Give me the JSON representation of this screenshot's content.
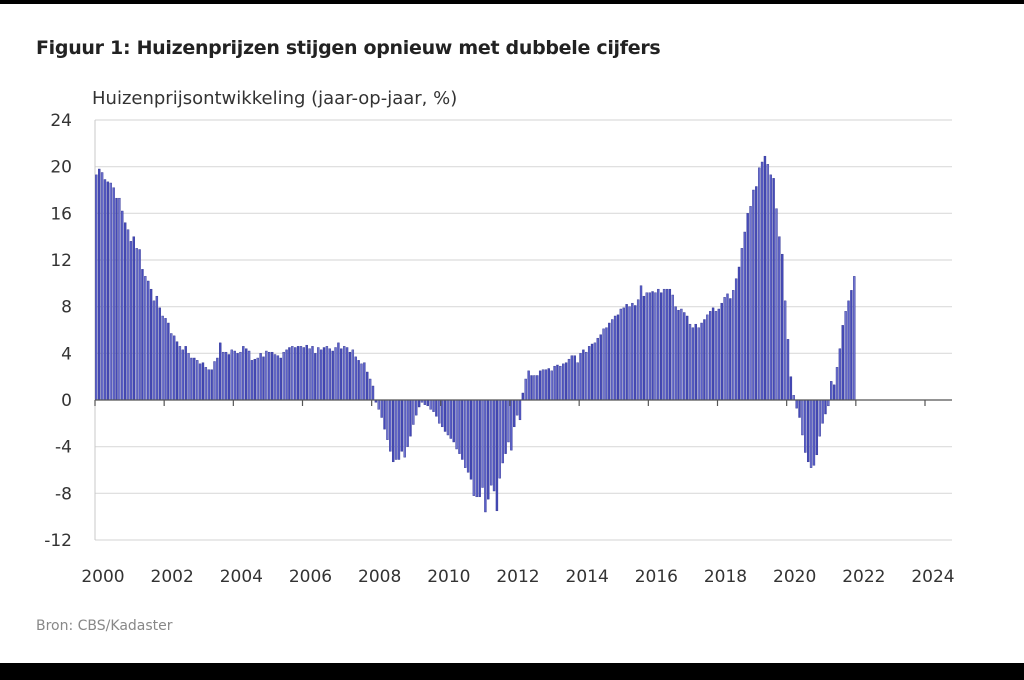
{
  "chart_data": {
    "type": "bar",
    "title": "Figuur 1: Huizenprijzen stijgen opnieuw met dubbele cijfers",
    "ylabel": "Huizenprijsontwikkeling (jaar-op-jaar, %)",
    "xlabel": "",
    "source": "Bron: CBS/Kadaster",
    "ylim": [
      -12,
      24
    ],
    "yticks": [
      "24",
      "20",
      "16",
      "12",
      "8",
      "4",
      "0",
      "-4",
      "-8",
      "-12"
    ],
    "ytick_values": [
      24,
      20,
      16,
      12,
      8,
      4,
      0,
      -4,
      -8,
      -12
    ],
    "xticks": [
      "2000",
      "2002",
      "2004",
      "2006",
      "2008",
      "2010",
      "2012",
      "2014",
      "2016",
      "2018",
      "2020",
      "2022",
      "2024"
    ],
    "x_start": "2000-01",
    "frequency": "monthly",
    "grid": true,
    "bar_color": "#4a4fc0",
    "series": [
      {
        "name": "Huizenprijsontwikkeling (jaar-op-jaar, %)",
        "values": [
          19.3,
          19.8,
          19.5,
          18.9,
          18.7,
          18.6,
          18.2,
          17.3,
          17.3,
          16.2,
          15.2,
          14.6,
          13.6,
          14.0,
          13.0,
          12.9,
          11.2,
          10.6,
          10.2,
          9.5,
          8.5,
          8.9,
          7.9,
          7.2,
          7.0,
          6.6,
          5.7,
          5.5,
          5.0,
          4.6,
          4.3,
          4.6,
          4.0,
          3.6,
          3.6,
          3.4,
          3.1,
          3.2,
          2.8,
          2.6,
          2.6,
          3.3,
          3.6,
          4.9,
          4.1,
          4.1,
          3.9,
          4.3,
          4.2,
          4.0,
          4.1,
          4.6,
          4.4,
          4.2,
          3.4,
          3.5,
          3.6,
          4.0,
          3.7,
          4.2,
          4.1,
          4.1,
          3.9,
          3.8,
          3.6,
          4.1,
          4.3,
          4.5,
          4.6,
          4.5,
          4.6,
          4.6,
          4.5,
          4.7,
          4.4,
          4.6,
          4.0,
          4.5,
          4.3,
          4.5,
          4.6,
          4.4,
          4.2,
          4.5,
          4.9,
          4.4,
          4.6,
          4.5,
          4.1,
          4.3,
          3.7,
          3.4,
          3.1,
          3.2,
          2.4,
          1.8,
          1.2,
          -0.2,
          -0.8,
          -1.5,
          -2.5,
          -3.4,
          -4.4,
          -5.3,
          -5.1,
          -5.1,
          -4.4,
          -4.9,
          -4.0,
          -3.1,
          -2.1,
          -1.3,
          -0.6,
          -0.2,
          -0.4,
          -0.5,
          -0.8,
          -1.0,
          -1.4,
          -2.0,
          -2.3,
          -2.7,
          -3.0,
          -3.3,
          -3.6,
          -4.2,
          -4.6,
          -5.1,
          -5.8,
          -6.2,
          -6.8,
          -8.2,
          -8.3,
          -8.3,
          -7.5,
          -9.6,
          -8.5,
          -7.3,
          -7.8,
          -9.5,
          -6.7,
          -5.4,
          -4.6,
          -3.6,
          -4.3,
          -2.3,
          -1.3,
          -1.7,
          0.6,
          1.8,
          2.5,
          2.1,
          2.1,
          2.1,
          2.5,
          2.6,
          2.6,
          2.7,
          2.5,
          2.9,
          3.0,
          2.9,
          3.1,
          3.2,
          3.5,
          3.8,
          3.8,
          3.2,
          4.0,
          4.3,
          4.1,
          4.6,
          4.8,
          4.9,
          5.3,
          5.6,
          6.1,
          6.2,
          6.6,
          6.9,
          7.2,
          7.3,
          7.8,
          7.9,
          8.2,
          8.0,
          8.3,
          8.1,
          8.6,
          9.8,
          8.9,
          9.2,
          9.2,
          9.3,
          9.2,
          9.5,
          9.2,
          9.5,
          9.5,
          9.5,
          9.0,
          8.0,
          7.7,
          7.8,
          7.5,
          7.2,
          6.5,
          6.2,
          6.5,
          6.2,
          6.6,
          6.9,
          7.3,
          7.6,
          7.9,
          7.6,
          7.8,
          8.3,
          8.8,
          9.1,
          8.7,
          9.4,
          10.4,
          11.4,
          13.0,
          14.4,
          16.0,
          16.6,
          18.0,
          18.3,
          19.9,
          20.4,
          20.9,
          20.2,
          19.3,
          19.0,
          16.4,
          14.0,
          12.5,
          8.5,
          5.2,
          2.0,
          0.4,
          -0.7,
          -1.5,
          -3.0,
          -4.5,
          -5.3,
          -5.8,
          -5.6,
          -4.7,
          -3.1,
          -2.0,
          -1.2,
          -0.5,
          1.6,
          1.3,
          2.8,
          4.4,
          6.4,
          7.6,
          8.5,
          9.4,
          10.6
        ]
      }
    ]
  }
}
